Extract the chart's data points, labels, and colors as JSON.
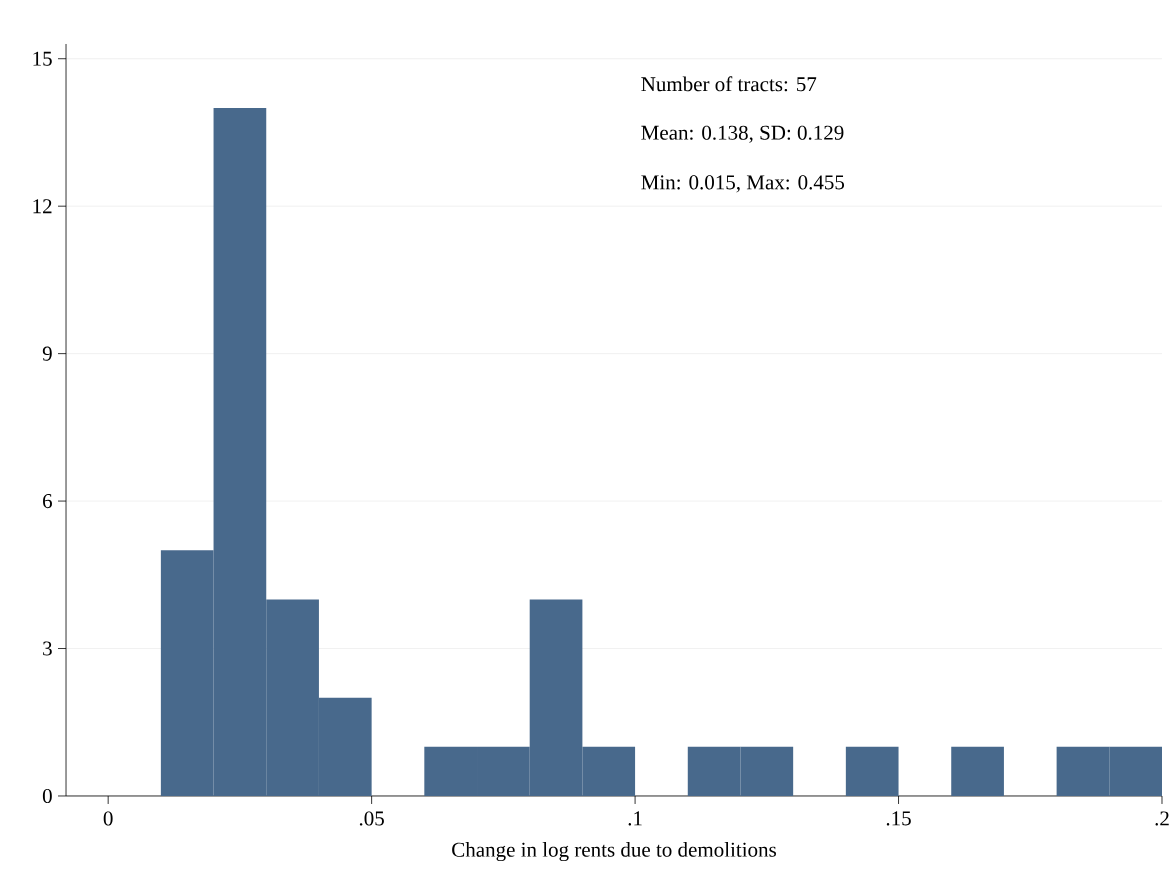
{
  "chart_data": {
    "type": "histogram",
    "xlabel": "Change in log rents due to demolitions",
    "bins": [
      0.01,
      0.02,
      0.03,
      0.04,
      0.05,
      0.06,
      0.07,
      0.08,
      0.09,
      0.1,
      0.11,
      0.12,
      0.13,
      0.14,
      0.15,
      0.16,
      0.17,
      0.18,
      0.19,
      0.2
    ],
    "values": [
      5,
      14,
      4,
      2,
      0,
      1,
      1,
      4,
      1,
      0,
      1,
      1,
      0,
      1,
      0,
      1,
      0,
      1,
      1
    ],
    "color": "#48698c",
    "xlim": [
      -0.008,
      0.2
    ],
    "ylim": [
      0,
      15.3
    ],
    "xticks": [
      0,
      {
        "value": 0.05,
        "label": ".05"
      },
      {
        "value": 0.1,
        "label": ".1"
      },
      {
        "value": 0.15,
        "label": ".15"
      },
      {
        "value": 0.2,
        "label": ".2"
      }
    ],
    "yticks": [
      0,
      3,
      6,
      9,
      12,
      15
    ],
    "grid": "y",
    "annotations": [
      "Number of tracts:  57",
      "Mean: 0.138, SD: 0.129",
      "Min: 0.015, Max: 0.455"
    ]
  }
}
